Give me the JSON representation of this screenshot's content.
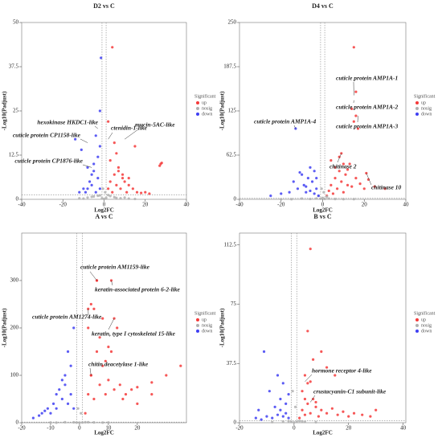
{
  "chart_data": [
    {
      "type": "scatter",
      "title": "D2 vs C",
      "x_label": "Log2FC",
      "y_label": "-Log10(Padjust)",
      "xlim": [
        -40,
        40
      ],
      "xticks": [
        -40,
        -20,
        0,
        20,
        40
      ],
      "ylim": [
        0,
        50
      ],
      "yticks": [
        0,
        12.5,
        25,
        37.5,
        50
      ],
      "threshold_x": [
        -1,
        1
      ],
      "threshold_y": 1.3,
      "legend_title": "Significant",
      "series": [
        {
          "name": "up",
          "color": "#f53a3a",
          "x": [
            2,
            3,
            4,
            5,
            6,
            7,
            8,
            9,
            10,
            11,
            12,
            14,
            16,
            18,
            20,
            22,
            3,
            5,
            7,
            2,
            4,
            15,
            27,
            27.5,
            28,
            6,
            9,
            12
          ],
          "values": [
            3,
            5,
            2,
            7,
            4,
            8,
            3,
            6,
            5,
            2,
            4,
            3,
            2,
            1.8,
            2,
            1.6,
            11,
            16,
            9,
            22,
            43,
            15,
            9.5,
            10,
            10.3,
            13,
            7,
            6
          ]
        },
        {
          "name": "nosig",
          "color": "#b0b0b0",
          "x": [
            -8,
            -5,
            -3,
            -1,
            0,
            1,
            3,
            5,
            8,
            -10,
            10,
            -2,
            2,
            -6,
            6,
            12,
            -12,
            0.5,
            -0.5,
            15
          ],
          "values": [
            0.5,
            0.8,
            1,
            0.3,
            0.1,
            0.4,
            0.9,
            0.6,
            0.3,
            0.2,
            0.5,
            1.1,
            1.2,
            0.7,
            0.4,
            0.2,
            0.3,
            2,
            3,
            0.1
          ]
        },
        {
          "name": "down",
          "color": "#3f3ff2",
          "x": [
            -2,
            -3,
            -4,
            -5,
            -6,
            -7,
            -8,
            -9,
            -10,
            -12,
            -3,
            -5,
            -2,
            -4,
            -14,
            -6,
            -2,
            -1.5,
            -11,
            -8
          ],
          "values": [
            3,
            6,
            2,
            8,
            4,
            5,
            3,
            2,
            3,
            2,
            12,
            10,
            15,
            18,
            17,
            7,
            25,
            40,
            14,
            9
          ]
        }
      ],
      "annotations": [
        {
          "text": "ctenidin-1-like",
          "x": 2,
          "y": 17
        },
        {
          "text": "mucin-5AC-like",
          "x": 10,
          "y": 17
        },
        {
          "text": "hexokinase HKDC1-like",
          "x": -3,
          "y": 20
        },
        {
          "text": "cuticle protein CP1158-like",
          "x": -8,
          "y": 16
        },
        {
          "text": "cuticle protein CP1876-like",
          "x": -6,
          "y": 9
        }
      ]
    },
    {
      "type": "scatter",
      "title": "D4 vs C",
      "x_label": "Log2FC",
      "y_label": "-Log10(Padjust)",
      "xlim": [
        -40,
        40
      ],
      "xticks": [
        -40,
        -20,
        0,
        20,
        40
      ],
      "ylim": [
        0,
        250
      ],
      "yticks": [
        0,
        62.5,
        125,
        187.5,
        250
      ],
      "threshold_x": [
        -1,
        1
      ],
      "threshold_y": 1.3,
      "legend_title": "Significant",
      "series": [
        {
          "name": "up",
          "color": "#f53a3a",
          "x": [
            2,
            3,
            4,
            5,
            6,
            7,
            8,
            9,
            10,
            11,
            12,
            13,
            14,
            16,
            18,
            20,
            22,
            25,
            30,
            4,
            6,
            8,
            10,
            12,
            15,
            16,
            14,
            16,
            15,
            17,
            9,
            21
          ],
          "values": [
            5,
            12,
            20,
            8,
            30,
            15,
            40,
            25,
            10,
            35,
            20,
            50,
            18,
            30,
            22,
            15,
            28,
            18,
            15,
            55,
            45,
            60,
            50,
            42,
            215,
            152,
            128,
            118,
            110,
            100,
            65,
            37
          ]
        },
        {
          "name": "nosig",
          "color": "#b0b0b0",
          "x": [
            -10,
            -6,
            -3,
            -1,
            0,
            1,
            3,
            6,
            10,
            -2,
            2,
            0.5,
            -0.5,
            -15,
            15,
            -20
          ],
          "values": [
            1,
            0.5,
            1.2,
            0.8,
            2,
            0.6,
            1,
            0.4,
            0.3,
            5,
            4,
            10,
            15,
            0.2,
            0.3,
            0.1
          ]
        },
        {
          "name": "down",
          "color": "#3f3ff2",
          "x": [
            -2,
            -3,
            -4,
            -5,
            -6,
            -7,
            -8,
            -9,
            -10,
            -12,
            -14,
            -16,
            -20,
            -25,
            -4,
            -6,
            -13,
            -3,
            -8,
            -11
          ],
          "values": [
            5,
            15,
            8,
            25,
            12,
            30,
            10,
            20,
            35,
            15,
            25,
            10,
            8,
            5,
            40,
            45,
            100,
            30,
            18,
            38
          ]
        }
      ],
      "annotations": [
        {
          "text": "cuticle protein AMP1A-4",
          "x": -13,
          "y": 100
        },
        {
          "text": "cuticle protein AMP1A-1",
          "x": 15,
          "y": 147
        },
        {
          "text": "cuticle protein AMP1A-2",
          "x": 15,
          "y": 140
        },
        {
          "text": "cuticle protein AMP1A-3",
          "x": 17,
          "y": 118
        },
        {
          "text": "chitinase 2",
          "x": 9,
          "y": 65
        },
        {
          "text": "chitinase 10",
          "x": 21,
          "y": 37
        }
      ]
    },
    {
      "type": "scatter",
      "title": "A vs C",
      "x_label": "Log2FC",
      "y_label": "-Log10(Padjust)",
      "xlim": [
        -20,
        37
      ],
      "xticks": [
        -20,
        -10,
        0,
        10,
        20
      ],
      "ylim": [
        0,
        400
      ],
      "yticks": [
        0,
        100,
        200,
        300
      ],
      "threshold_x": [
        -1,
        1
      ],
      "threshold_y": 1.3,
      "legend_title": "Significant",
      "series": [
        {
          "name": "up",
          "color": "#f53a3a",
          "x": [
            2,
            3,
            4,
            5,
            6,
            7,
            8,
            9,
            10,
            12,
            14,
            16,
            18,
            20,
            25,
            30,
            35,
            3,
            5,
            7,
            9,
            11,
            4,
            6,
            8,
            10,
            13,
            6,
            11,
            3,
            12,
            4,
            15,
            20,
            25
          ],
          "values": [
            20,
            60,
            100,
            50,
            150,
            80,
            120,
            60,
            90,
            70,
            80,
            60,
            70,
            75,
            85,
            100,
            120,
            200,
            240,
            180,
            130,
            150,
            250,
            300,
            220,
            160,
            200,
            300,
            300,
            240,
            220,
            100,
            50,
            40,
            60
          ]
        },
        {
          "name": "nosig",
          "color": "#b0b0b0",
          "x": [
            -10,
            -5,
            -2,
            -1,
            0,
            1,
            2,
            5,
            10,
            0.5,
            -0.5,
            -8,
            8,
            3
          ],
          "values": [
            0.5,
            1,
            0.8,
            0.3,
            0.2,
            0.5,
            1,
            0.6,
            0.4,
            20,
            30,
            0.2,
            0.3,
            1.1
          ]
        },
        {
          "name": "down",
          "color": "#3f3ff2",
          "x": [
            -2,
            -3,
            -4,
            -5,
            -6,
            -8,
            -10,
            -12,
            -14,
            -16,
            -3,
            -5,
            -7,
            -9,
            -2,
            -4,
            -6,
            -11,
            -13,
            -8
          ],
          "values": [
            30,
            60,
            40,
            80,
            50,
            30,
            20,
            25,
            15,
            10,
            120,
            100,
            70,
            40,
            200,
            150,
            90,
            30,
            20,
            60
          ]
        }
      ],
      "annotations": [
        {
          "text": "cuticle protein AM1159-like",
          "x": 6,
          "y": 300
        },
        {
          "text": "keratin-associated protein 6-2-like",
          "x": 11,
          "y": 300
        },
        {
          "text": "cuticle protein AM1274-like",
          "x": 3,
          "y": 240
        },
        {
          "text": "keratin, type I cytoskeletal 15-like",
          "x": 12,
          "y": 220
        },
        {
          "text": "chitin deacetylase 1-like",
          "x": 4,
          "y": 100
        }
      ]
    },
    {
      "type": "scatter",
      "title": "B vs C",
      "x_label": "Log2FC",
      "y_label": "-Log10(Padjust)",
      "xlim": [
        -20,
        41
      ],
      "xticks": [
        -20,
        0,
        20,
        40
      ],
      "ylim": [
        0,
        120
      ],
      "yticks": [
        0,
        37.5,
        75,
        112.5
      ],
      "threshold_x": [
        -1,
        1
      ],
      "threshold_y": 1.3,
      "legend_title": "Significant",
      "series": [
        {
          "name": "up",
          "color": "#f53a3a",
          "x": [
            2,
            3,
            4,
            5,
            6,
            7,
            8,
            9,
            10,
            12,
            14,
            16,
            18,
            20,
            22,
            25,
            28,
            30,
            3,
            5,
            7,
            4,
            6,
            8,
            10,
            5,
            6,
            12,
            15,
            4
          ],
          "values": [
            3,
            8,
            5,
            12,
            6,
            15,
            10,
            4,
            8,
            6,
            9,
            5,
            7,
            4,
            6,
            5,
            4,
            8,
            20,
            25,
            40,
            30,
            26,
            13,
            45,
            58,
            110,
            35,
            30,
            15
          ]
        },
        {
          "name": "nosig",
          "color": "#b0b0b0",
          "x": [
            -8,
            -4,
            -2,
            -1,
            0,
            1,
            2,
            4,
            8,
            0.5,
            -0.5,
            3
          ],
          "values": [
            0.4,
            0.8,
            1,
            0.5,
            0.2,
            0.6,
            1.1,
            0.5,
            0.3,
            10,
            20,
            0.9
          ]
        },
        {
          "name": "down",
          "color": "#3f3ff2",
          "x": [
            -2,
            -3,
            -4,
            -5,
            -6,
            -8,
            -10,
            -12,
            -14,
            -3,
            -5,
            -7,
            -9,
            -11,
            -4,
            -6,
            -2,
            -13
          ],
          "values": [
            3,
            6,
            4,
            8,
            5,
            3,
            4,
            2,
            3,
            12,
            15,
            10,
            20,
            45,
            25,
            30,
            18,
            8
          ]
        }
      ],
      "annotations": [
        {
          "text": "hormone receptor 4-like",
          "x": 4,
          "y": 26
        },
        {
          "text": "crustacyanin-C1 subunit-like",
          "x": 6,
          "y": 13
        }
      ]
    }
  ]
}
